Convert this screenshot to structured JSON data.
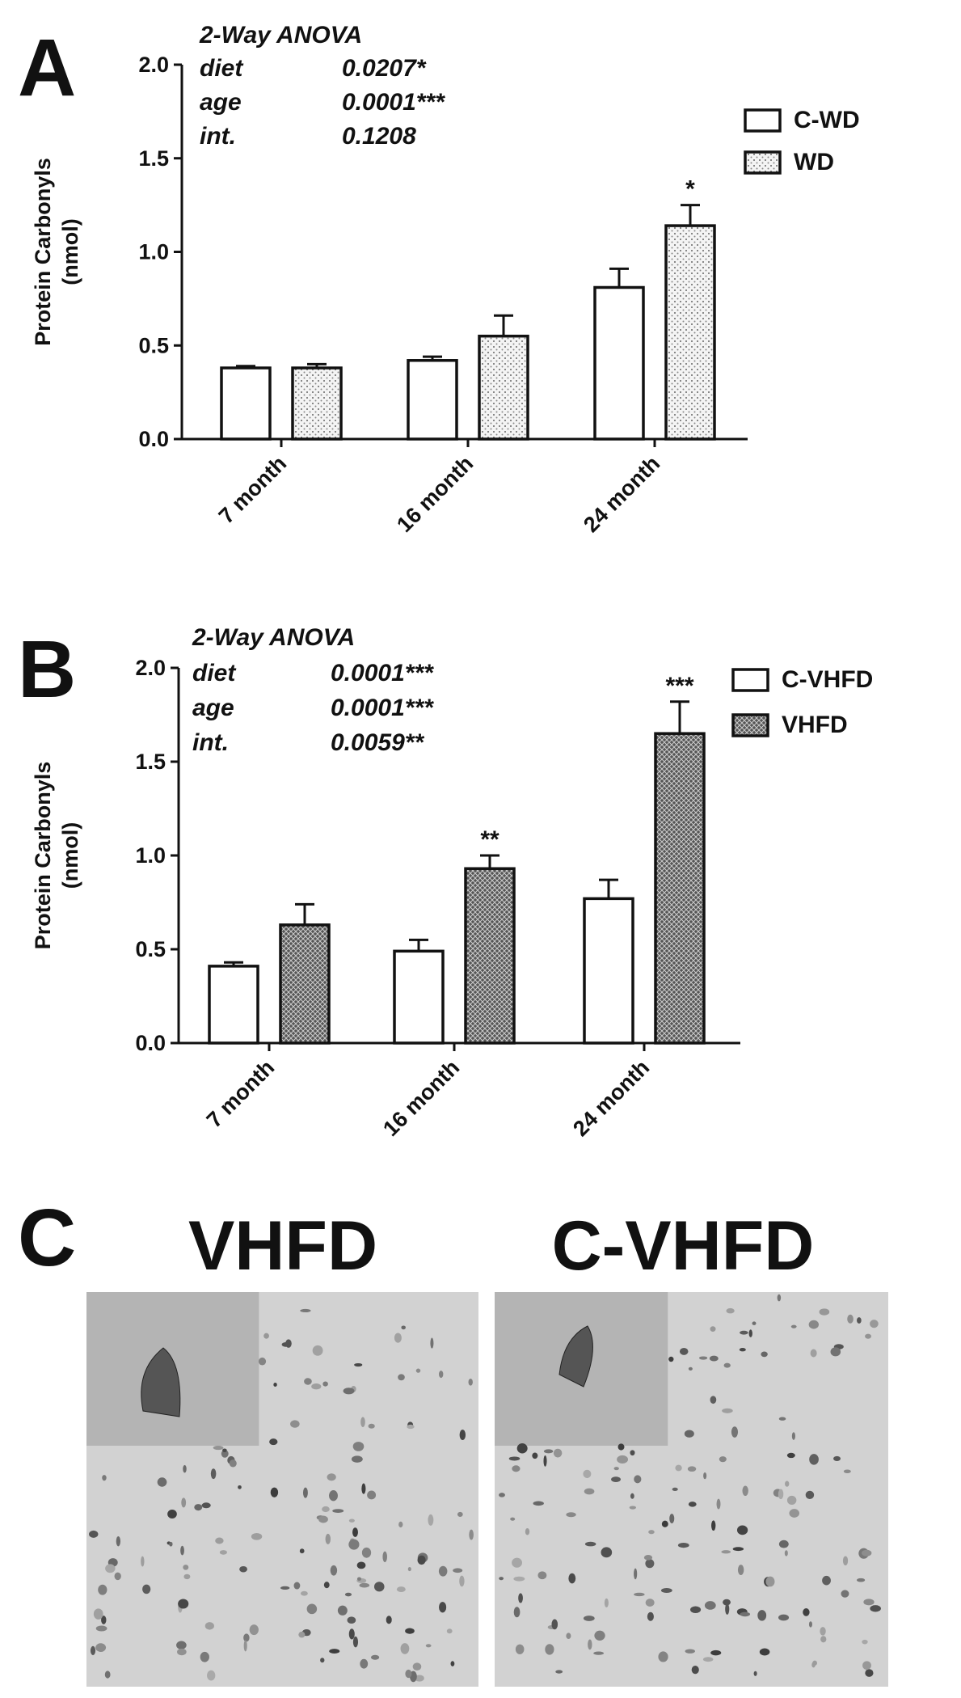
{
  "chart_data": [
    {
      "type": "bar",
      "panel": "A",
      "ylabel": [
        "Protein Carbonyls",
        "(nmol)"
      ],
      "categories": [
        "7 month",
        "16 month",
        "24 month"
      ],
      "series": [
        {
          "name": "C-WD",
          "fill": "plain",
          "values": [
            0.38,
            0.42,
            0.81
          ],
          "errors": [
            0.01,
            0.02,
            0.1
          ],
          "significance": [
            null,
            null,
            null
          ]
        },
        {
          "name": "WD",
          "fill": "dots",
          "values": [
            0.38,
            0.55,
            1.14
          ],
          "errors": [
            0.02,
            0.11,
            0.11
          ],
          "significance": [
            null,
            null,
            "*"
          ]
        }
      ],
      "ylim": [
        0,
        2
      ],
      "yticks": [
        {
          "value": 0,
          "label": "0.0"
        },
        0.5,
        {
          "value": 1,
          "label": "1.0"
        },
        1.5,
        {
          "value": 2,
          "label": "2.0"
        }
      ],
      "anova": {
        "title": "2-Way ANOVA",
        "rows": [
          [
            "diet",
            "0.0207*"
          ],
          [
            "age",
            "0.0001***"
          ],
          [
            "int.",
            "0.1208"
          ]
        ]
      }
    },
    {
      "type": "bar",
      "panel": "B",
      "ylabel": [
        "Protein Carbonyls",
        "(nmol)"
      ],
      "categories": [
        "7 month",
        "16 month",
        "24 month"
      ],
      "series": [
        {
          "name": "C-VHFD",
          "fill": "plain",
          "values": [
            0.41,
            0.49,
            0.77
          ],
          "errors": [
            0.02,
            0.06,
            0.1
          ],
          "significance": [
            null,
            null,
            null
          ]
        },
        {
          "name": "VHFD",
          "fill": "crosshatch",
          "values": [
            0.63,
            0.93,
            1.65
          ],
          "errors": [
            0.11,
            0.07,
            0.17
          ],
          "significance": [
            null,
            "**",
            "***"
          ]
        }
      ],
      "ylim": [
        0,
        2
      ],
      "yticks": [
        {
          "value": 0,
          "label": "0.0"
        },
        0.5,
        {
          "value": 1,
          "label": "1.0"
        },
        1.5,
        {
          "value": 2,
          "label": "2.0"
        }
      ],
      "anova": {
        "title": "2-Way ANOVA",
        "rows": [
          [
            "diet",
            "0.0001***"
          ],
          [
            "age",
            "0.0001***"
          ],
          [
            "int.",
            "0.0059**"
          ]
        ]
      }
    }
  ],
  "panel_c": {
    "letter": "C",
    "images": [
      {
        "label": "VHFD"
      },
      {
        "label": "C-VHFD"
      }
    ]
  }
}
